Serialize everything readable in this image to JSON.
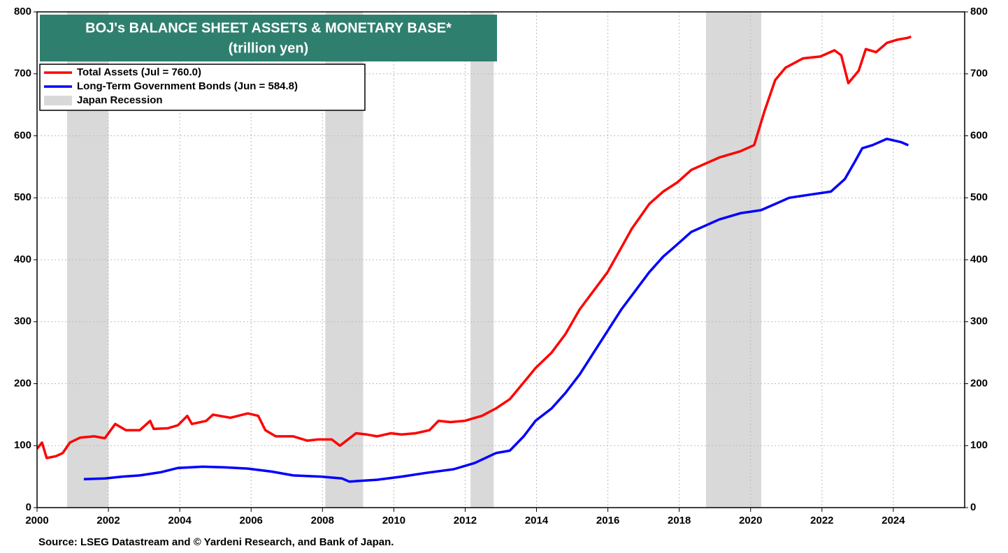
{
  "chart_data": {
    "type": "line",
    "title": "BOJ's BALANCE SHEET ASSETS & MONETARY BASE*",
    "subtitle": "(trillion yen)",
    "source": "Source: LSEG Datastream and © Yardeni Research, and Bank of Japan.",
    "xlim": [
      2000,
      2026
    ],
    "xticks": [
      2000,
      2002,
      2004,
      2006,
      2008,
      2010,
      2012,
      2014,
      2016,
      2018,
      2020,
      2022,
      2024
    ],
    "ylim": [
      0,
      800
    ],
    "yticks": [
      0,
      100,
      200,
      300,
      400,
      500,
      600,
      700,
      800
    ],
    "grid": true,
    "legend": "top-left",
    "recessions": {
      "name": "Japan Recession",
      "color": "#d9d9d9",
      "spans": [
        [
          2000.84,
          2002.0
        ],
        [
          2008.08,
          2009.14
        ],
        [
          2012.15,
          2012.8
        ],
        [
          2018.75,
          2020.3
        ]
      ]
    },
    "series": [
      {
        "name": "Total Assets (Jul = 760.0)",
        "color": "#ff0000",
        "x": [
          2000.0,
          2000.14,
          2000.27,
          2000.53,
          2000.72,
          2000.92,
          2001.21,
          2001.6,
          2001.9,
          2002.19,
          2002.49,
          2002.88,
          2003.17,
          2003.27,
          2003.66,
          2003.95,
          2004.21,
          2004.34,
          2004.74,
          2004.93,
          2005.42,
          2005.91,
          2006.2,
          2006.4,
          2006.69,
          2007.18,
          2007.57,
          2007.87,
          2008.26,
          2008.49,
          2008.94,
          2009.24,
          2009.53,
          2009.92,
          2010.22,
          2010.61,
          2011.0,
          2011.25,
          2011.59,
          2011.98,
          2012.47,
          2012.86,
          2013.25,
          2013.54,
          2013.97,
          2014.42,
          2014.81,
          2015.21,
          2015.6,
          2015.99,
          2016.38,
          2016.67,
          2017.16,
          2017.55,
          2017.95,
          2018.34,
          2018.73,
          2019.12,
          2019.71,
          2020.1,
          2020.39,
          2020.69,
          2020.98,
          2021.47,
          2021.96,
          2022.35,
          2022.54,
          2022.74,
          2023.03,
          2023.23,
          2023.52,
          2023.82,
          2024.11,
          2024.4,
          2024.5
        ],
        "values": [
          95,
          105,
          80,
          83,
          88,
          105,
          113,
          115,
          112,
          135,
          125,
          125,
          140,
          127,
          128,
          133,
          148,
          135,
          140,
          150,
          145,
          152,
          148,
          125,
          115,
          115,
          108,
          110,
          110,
          100,
          120,
          118,
          115,
          120,
          118,
          120,
          125,
          140,
          138,
          140,
          148,
          160,
          175,
          195,
          225,
          250,
          280,
          320,
          350,
          380,
          420,
          450,
          490,
          510,
          525,
          545,
          555,
          565,
          575,
          585,
          640,
          690,
          710,
          725,
          728,
          738,
          730,
          685,
          705,
          740,
          735,
          750,
          755,
          758,
          760
        ]
      },
      {
        "name": "Long-Term Government Bonds (Jun = 584.8)",
        "color": "#0000ff",
        "x": [
          2001.31,
          2001.9,
          2002.39,
          2002.88,
          2003.46,
          2003.95,
          2004.64,
          2005.23,
          2005.91,
          2006.59,
          2007.18,
          2007.96,
          2008.55,
          2008.75,
          2009.53,
          2010.22,
          2010.9,
          2011.68,
          2012.27,
          2012.86,
          2013.25,
          2013.64,
          2013.97,
          2014.42,
          2014.81,
          2015.21,
          2015.6,
          2015.99,
          2016.38,
          2016.77,
          2017.16,
          2017.55,
          2017.95,
          2018.34,
          2018.73,
          2019.12,
          2019.71,
          2020.29,
          2020.69,
          2021.08,
          2021.66,
          2022.25,
          2022.64,
          2022.94,
          2023.13,
          2023.42,
          2023.82,
          2024.21,
          2024.42
        ],
        "values": [
          46,
          47,
          50,
          52,
          57,
          64,
          66,
          65,
          63,
          58,
          52,
          50,
          47,
          42,
          45,
          50,
          56,
          62,
          72,
          88,
          92,
          115,
          140,
          160,
          185,
          215,
          250,
          285,
          320,
          350,
          380,
          405,
          425,
          445,
          455,
          465,
          475,
          480,
          490,
          500,
          505,
          510,
          530,
          560,
          580,
          585,
          595,
          590,
          584.8
        ]
      }
    ]
  }
}
